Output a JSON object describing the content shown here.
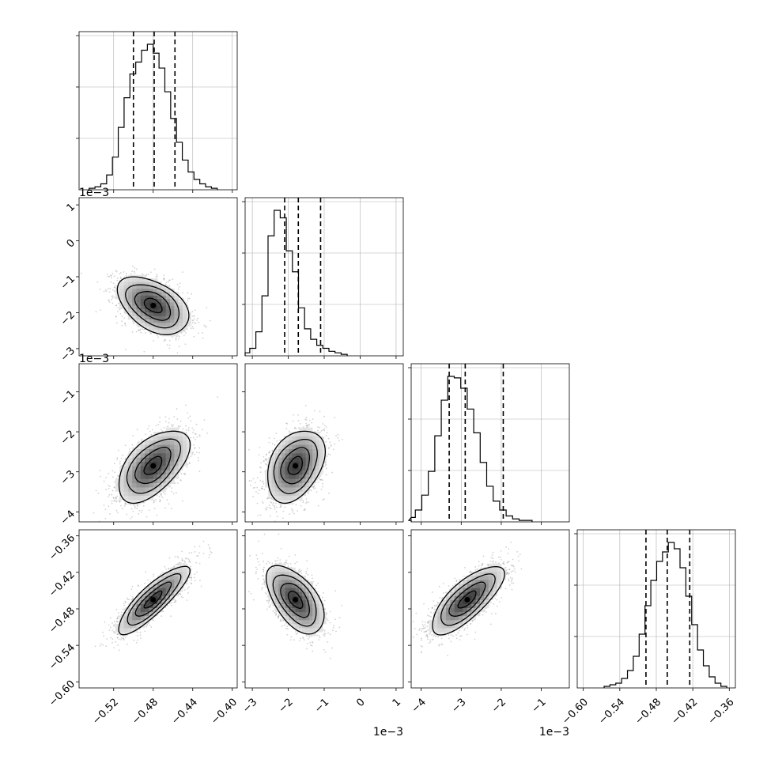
{
  "chart_data": {
    "type": "corner",
    "title": "",
    "colors": {
      "line": "#000000",
      "grid": "#b0b0b0",
      "scatter": "#7f7f7f",
      "quantile": "#000000"
    },
    "grid": true,
    "parameters": [
      {
        "range": [
          -0.555,
          -0.395
        ],
        "ticks": [
          -0.52,
          -0.48,
          -0.44,
          -0.4
        ],
        "tick_labels": [
          "−0.52",
          "−0.48",
          "−0.44",
          "−0.40"
        ],
        "offset": "",
        "mean": -0.48,
        "std": 0.018,
        "quantiles": [
          -0.5,
          -0.479,
          -0.458
        ],
        "hist_counts": [
          1,
          2,
          4,
          10,
          22,
          42,
          62,
          78,
          86,
          94,
          98,
          92,
          82,
          66,
          48,
          32,
          20,
          12,
          7,
          4,
          2,
          1
        ]
      },
      {
        "range": [
          -3.2,
          1.2
        ],
        "ticks": [
          -3,
          -2,
          -1,
          0,
          1
        ],
        "tick_labels": [
          "−3",
          "−2",
          "−1",
          "0",
          "1"
        ],
        "offset": "1e−3",
        "mean": -1.8,
        "std": 0.4,
        "quantiles": [
          -2.1,
          -1.72,
          -1.1
        ],
        "hist_counts": [
          2,
          5,
          16,
          40,
          80,
          97,
          92,
          70,
          56,
          32,
          18,
          11,
          7,
          5,
          3,
          2,
          1
        ]
      },
      {
        "range": [
          -4.25,
          -0.3
        ],
        "ticks": [
          -4,
          -3,
          -2,
          -1
        ],
        "tick_labels": [
          "−4",
          "−3",
          "−2",
          "−1"
        ],
        "offset": "1e−3",
        "mean": -2.85,
        "std": 0.45,
        "quantiles": [
          -3.3,
          -2.9,
          -1.95
        ],
        "hist_counts": [
          1,
          3,
          8,
          18,
          34,
          58,
          82,
          98,
          97,
          90,
          76,
          60,
          40,
          24,
          14,
          8,
          4,
          2,
          1,
          1
        ]
      },
      {
        "range": [
          -0.61,
          -0.35
        ],
        "ticks": [
          -0.6,
          -0.54,
          -0.48,
          -0.42,
          -0.36
        ],
        "tick_labels": [
          "−0.60",
          "−0.54",
          "−0.48",
          "−0.42",
          "−0.36"
        ],
        "offset": "",
        "mean": -0.465,
        "std": 0.028,
        "quantiles": [
          -0.497,
          -0.462,
          -0.425
        ],
        "hist_counts": [
          1,
          2,
          3,
          6,
          11,
          20,
          34,
          52,
          68,
          80,
          86,
          92,
          88,
          76,
          58,
          40,
          24,
          14,
          7,
          3,
          1
        ]
      }
    ],
    "correlations": {
      "1-0": -0.45,
      "2-0": 0.55,
      "2-1": 0.35,
      "3-0": 0.85,
      "3-1": -0.55,
      "3-2": 0.75
    },
    "hist_y_ticks": 3,
    "scatter_points_per_panel": 1800,
    "contour_sigma_levels": [
      0.5,
      1.0,
      1.5,
      2.0
    ]
  }
}
